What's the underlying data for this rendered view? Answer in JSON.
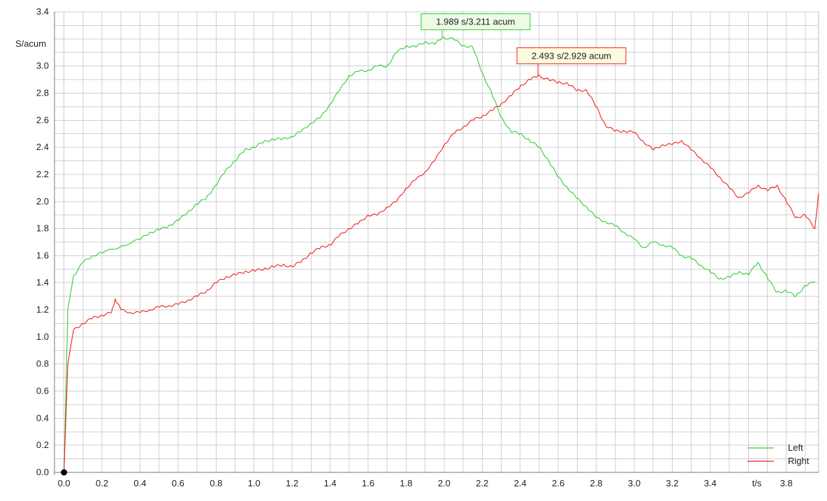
{
  "chart_data": {
    "type": "line",
    "ylabel": "S/acum",
    "xlabel": "t/s",
    "xlim": [
      -0.05,
      3.97
    ],
    "ylim": [
      0.0,
      3.4
    ],
    "x_ticks": [
      "0.0",
      "0.2",
      "0.4",
      "0.6",
      "0.8",
      "1.0",
      "1.2",
      "1.4",
      "1.6",
      "1.8",
      "2.0",
      "2.2",
      "2.4",
      "2.6",
      "2.8",
      "3.0",
      "3.2",
      "3.4",
      "3.8"
    ],
    "y_ticks": [
      "0.0",
      "0.2",
      "0.4",
      "0.6",
      "0.8",
      "1.0",
      "1.2",
      "1.4",
      "1.6",
      "1.8",
      "2.0",
      "2.2",
      "2.4",
      "2.6",
      "2.8",
      "3.0",
      "3.4"
    ],
    "grid": true,
    "legend_position": "bottom-right",
    "origin_marker": {
      "x": 0.0,
      "y": 0.0,
      "color": "#000000"
    },
    "series": [
      {
        "name": "Left",
        "color": "#33cc33",
        "x": [
          0.0,
          0.02,
          0.05,
          0.1,
          0.15,
          0.2,
          0.3,
          0.4,
          0.45,
          0.5,
          0.55,
          0.6,
          0.65,
          0.7,
          0.75,
          0.8,
          0.85,
          0.9,
          0.95,
          1.0,
          1.05,
          1.1,
          1.15,
          1.2,
          1.25,
          1.3,
          1.35,
          1.4,
          1.45,
          1.5,
          1.55,
          1.6,
          1.65,
          1.7,
          1.75,
          1.8,
          1.85,
          1.9,
          1.95,
          1.989,
          2.05,
          2.1,
          2.15,
          2.2,
          2.25,
          2.3,
          2.35,
          2.4,
          2.45,
          2.5,
          2.55,
          2.6,
          2.65,
          2.7,
          2.75,
          2.8,
          2.85,
          2.9,
          2.95,
          3.0,
          3.05,
          3.1,
          3.15,
          3.2,
          3.25,
          3.3,
          3.35,
          3.4,
          3.45,
          3.5,
          3.55,
          3.6,
          3.65,
          3.7,
          3.75,
          3.8,
          3.85,
          3.9,
          3.95
        ],
        "y": [
          0.0,
          1.2,
          1.45,
          1.55,
          1.6,
          1.62,
          1.67,
          1.72,
          1.77,
          1.79,
          1.82,
          1.86,
          1.92,
          1.98,
          2.03,
          2.12,
          2.23,
          2.3,
          2.38,
          2.4,
          2.44,
          2.46,
          2.46,
          2.48,
          2.52,
          2.58,
          2.62,
          2.72,
          2.82,
          2.93,
          2.96,
          2.97,
          3.0,
          3.0,
          3.1,
          3.15,
          3.14,
          3.18,
          3.16,
          3.211,
          3.2,
          3.15,
          3.14,
          2.95,
          2.8,
          2.62,
          2.52,
          2.5,
          2.45,
          2.4,
          2.3,
          2.18,
          2.1,
          2.02,
          1.96,
          1.88,
          1.85,
          1.82,
          1.77,
          1.72,
          1.66,
          1.7,
          1.68,
          1.66,
          1.6,
          1.58,
          1.53,
          1.48,
          1.43,
          1.44,
          1.48,
          1.46,
          1.55,
          1.44,
          1.33,
          1.34,
          1.3,
          1.38,
          1.41
        ]
      },
      {
        "name": "Right",
        "color": "#ee2222",
        "x": [
          0.0,
          0.02,
          0.05,
          0.1,
          0.15,
          0.2,
          0.25,
          0.27,
          0.3,
          0.35,
          0.4,
          0.45,
          0.5,
          0.55,
          0.6,
          0.65,
          0.7,
          0.75,
          0.8,
          0.85,
          0.9,
          0.95,
          1.0,
          1.05,
          1.1,
          1.15,
          1.2,
          1.25,
          1.3,
          1.35,
          1.4,
          1.45,
          1.5,
          1.55,
          1.6,
          1.65,
          1.7,
          1.75,
          1.8,
          1.85,
          1.9,
          1.95,
          2.0,
          2.05,
          2.1,
          2.15,
          2.2,
          2.25,
          2.3,
          2.35,
          2.4,
          2.45,
          2.493,
          2.55,
          2.6,
          2.65,
          2.7,
          2.75,
          2.8,
          2.85,
          2.9,
          2.95,
          3.0,
          3.05,
          3.1,
          3.15,
          3.2,
          3.25,
          3.3,
          3.35,
          3.4,
          3.45,
          3.5,
          3.55,
          3.6,
          3.65,
          3.7,
          3.75,
          3.8,
          3.85,
          3.9,
          3.95,
          3.97
        ],
        "y": [
          0.0,
          0.8,
          1.05,
          1.1,
          1.14,
          1.16,
          1.18,
          1.28,
          1.2,
          1.18,
          1.18,
          1.2,
          1.22,
          1.23,
          1.24,
          1.27,
          1.3,
          1.34,
          1.4,
          1.44,
          1.46,
          1.48,
          1.49,
          1.5,
          1.52,
          1.53,
          1.52,
          1.56,
          1.62,
          1.66,
          1.68,
          1.75,
          1.8,
          1.84,
          1.9,
          1.9,
          1.96,
          2.0,
          2.1,
          2.16,
          2.22,
          2.3,
          2.42,
          2.5,
          2.55,
          2.6,
          2.63,
          2.67,
          2.72,
          2.78,
          2.85,
          2.9,
          2.929,
          2.9,
          2.88,
          2.87,
          2.82,
          2.82,
          2.7,
          2.56,
          2.52,
          2.52,
          2.51,
          2.44,
          2.38,
          2.42,
          2.42,
          2.45,
          2.38,
          2.32,
          2.25,
          2.18,
          2.1,
          2.03,
          2.06,
          2.12,
          2.08,
          2.12,
          2.0,
          1.88,
          1.9,
          1.8,
          2.06
        ]
      }
    ],
    "annotations": [
      {
        "text": "1.989 s/3.211 acum",
        "x": 1.989,
        "y": 3.211,
        "series": "Left",
        "bg": "#ebfbe6",
        "border": "#33cc33"
      },
      {
        "text": "2.493 s/2.929 acum",
        "x": 2.493,
        "y": 2.929,
        "series": "Right",
        "bg": "#fbfbe0",
        "border": "#ee2222"
      }
    ]
  }
}
